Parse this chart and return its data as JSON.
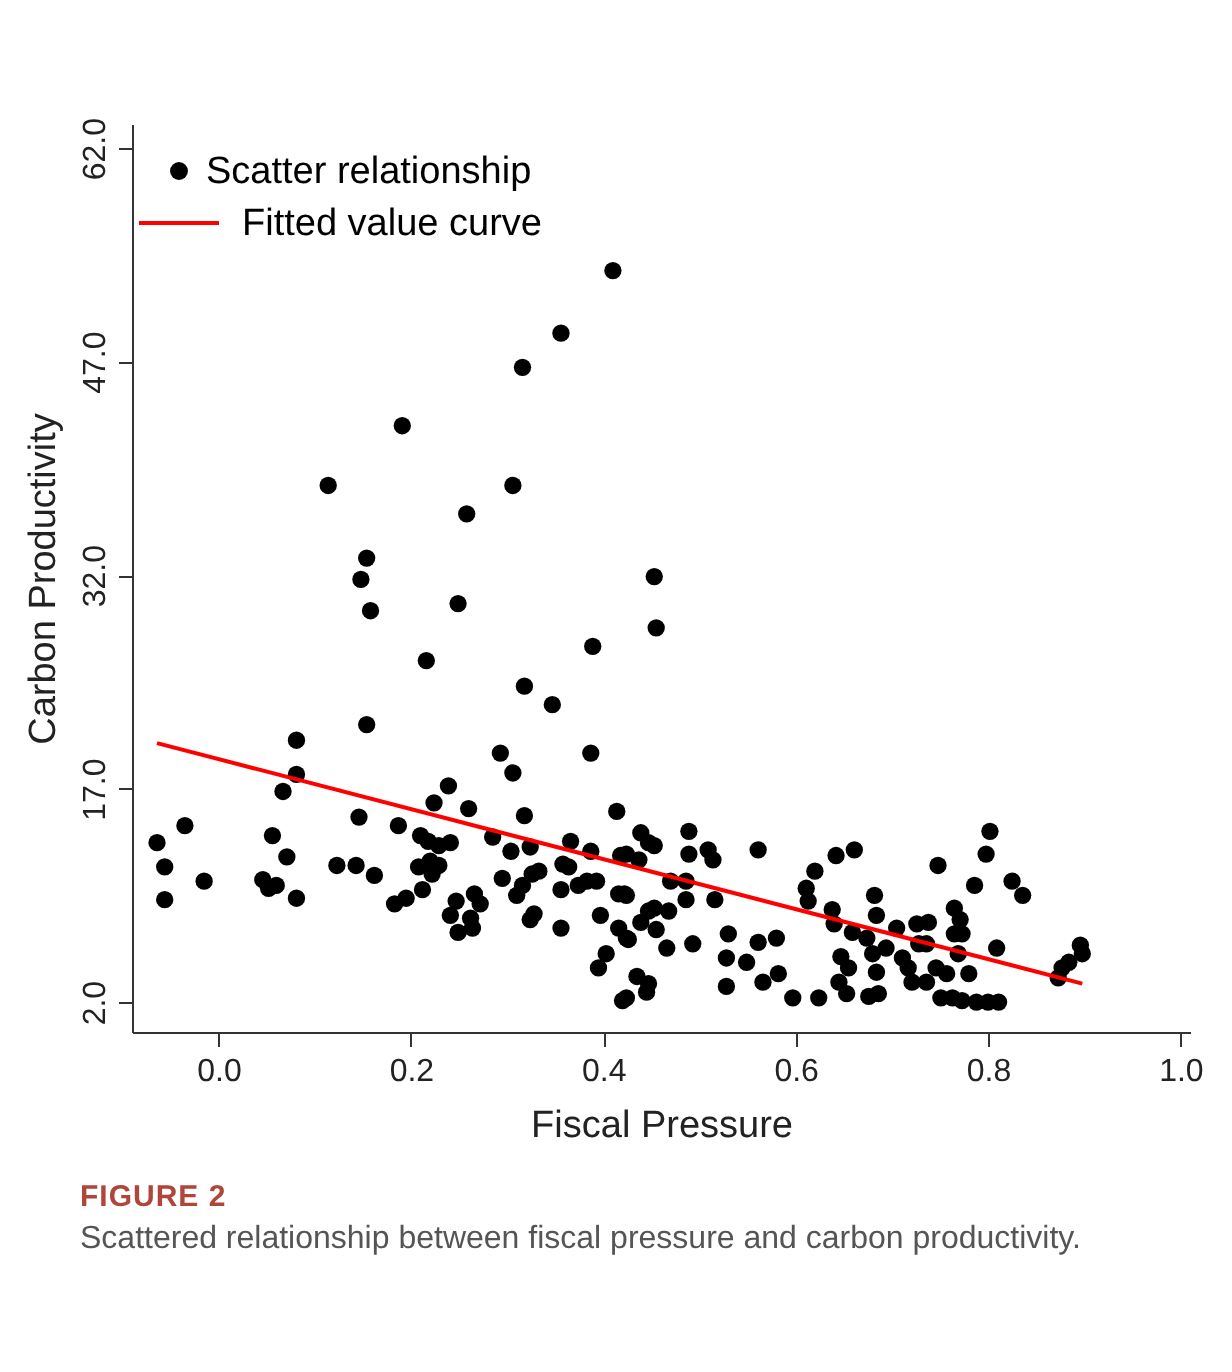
{
  "chart_data": {
    "type": "scatter",
    "xlabel": "Fiscal Pressure",
    "ylabel": "Carbon Productivity",
    "xlim": [
      -0.09,
      1.01
    ],
    "ylim": [
      -0.1,
      63.7
    ],
    "xticks": [
      {
        "value": 0,
        "label": "0.0"
      },
      {
        "value": 0.2,
        "label": "0.2"
      },
      {
        "value": 0.4,
        "label": "0.4"
      },
      {
        "value": 0.6,
        "label": "0.6"
      },
      {
        "value": 0.8,
        "label": "0.8"
      },
      {
        "value": 1,
        "label": "1.0"
      }
    ],
    "yticks": [
      {
        "value": 2,
        "label": "2.0"
      },
      {
        "value": 17,
        "label": "17.0"
      },
      {
        "value": 32,
        "label": "32.0"
      },
      {
        "value": 47,
        "label": "47.0"
      },
      {
        "value": 62,
        "label": "62.0"
      }
    ],
    "legend": "top left",
    "grid": false,
    "annotations": [
      "FIGURE 2",
      "Scattered relationship between fiscal pressure and carbon productivity."
    ],
    "series": [
      {
        "name": "Scatter relationship",
        "color": "#000000",
        "marker": "circle",
        "x": [
          0.41,
          0.356,
          0.316,
          0.191,
          0.114,
          0.306,
          0.258,
          0.154,
          0.148,
          0.158,
          0.249,
          0.453,
          0.455,
          0.389,
          0.216,
          0.318,
          0.347,
          0.154,
          0.081,
          0.293,
          0.387,
          0.081,
          0.306,
          0.067,
          0.239,
          0.224,
          0.26,
          -0.064,
          -0.035,
          -0.056,
          -0.056,
          -0.015,
          0.056,
          0.071,
          0.046,
          0.06,
          0.052,
          0.081,
          0.146,
          0.123,
          0.143,
          0.162,
          0.187,
          0.183,
          0.195,
          0.21,
          0.218,
          0.229,
          0.241,
          0.208,
          0.22,
          0.229,
          0.212,
          0.222,
          0.247,
          0.241,
          0.249,
          0.262,
          0.266,
          0.272,
          0.264,
          0.285,
          0.304,
          0.318,
          0.324,
          0.295,
          0.316,
          0.31,
          0.333,
          0.326,
          0.328,
          0.324,
          0.356,
          0.356,
          0.358,
          0.366,
          0.364,
          0.374,
          0.387,
          0.383,
          0.393,
          0.397,
          0.403,
          0.395,
          0.414,
          0.418,
          0.416,
          0.422,
          0.416,
          0.426,
          0.42,
          0.439,
          0.437,
          0.447,
          0.439,
          0.447,
          0.435,
          0.447,
          0.455,
          0.453,
          0.424,
          0.489,
          0.489,
          0.509,
          0.514,
          0.561,
          0.47,
          0.486,
          0.486,
          0.516,
          0.424,
          0.453,
          0.468,
          0.424,
          0.466,
          0.493,
          0.445,
          0.424,
          0.53,
          0.528,
          0.528,
          0.549,
          0.561,
          0.58,
          0.566,
          0.582,
          0.597,
          0.624,
          0.611,
          0.613,
          0.62,
          0.642,
          0.661,
          0.638,
          0.64,
          0.659,
          0.647,
          0.655,
          0.645,
          0.653,
          0.682,
          0.684,
          0.674,
          0.68,
          0.684,
          0.676,
          0.686,
          0.694,
          0.705,
          0.711,
          0.717,
          0.726,
          0.728,
          0.738,
          0.736,
          0.721,
          0.736,
          0.746,
          0.757,
          0.748,
          0.765,
          0.771,
          0.765,
          0.773,
          0.769,
          0.78,
          0.773,
          0.788,
          0.8,
          0.811,
          0.751,
          0.763,
          0.786,
          0.798,
          0.802,
          0.809,
          0.825,
          0.836,
          0.873,
          0.877,
          0.884,
          0.896,
          0.898
        ],
        "values": [
          53.4,
          49.0,
          46.6,
          42.5,
          38.3,
          38.3,
          36.3,
          33.2,
          31.7,
          29.5,
          30.0,
          31.9,
          28.3,
          27.0,
          26.0,
          24.2,
          22.9,
          21.5,
          20.4,
          19.5,
          19.5,
          18.0,
          18.1,
          16.8,
          17.2,
          16.0,
          15.6,
          13.2,
          14.4,
          11.5,
          9.2,
          10.5,
          13.7,
          12.2,
          10.6,
          10.2,
          10.0,
          9.3,
          15.0,
          11.6,
          11.6,
          10.9,
          14.4,
          8.9,
          9.3,
          13.7,
          13.3,
          13.0,
          13.2,
          11.5,
          11.9,
          11.6,
          9.9,
          11.0,
          9.1,
          8.1,
          6.9,
          7.9,
          9.6,
          8.9,
          7.2,
          13.6,
          12.6,
          15.1,
          12.9,
          10.7,
          10.2,
          9.5,
          11.2,
          11.0,
          8.2,
          7.8,
          7.2,
          9.9,
          11.7,
          13.3,
          11.5,
          10.2,
          12.6,
          10.5,
          10.5,
          8.1,
          5.4,
          4.4,
          15.4,
          12.3,
          9.6,
          9.6,
          7.2,
          6.4,
          2.1,
          13.9,
          12.0,
          13.2,
          7.6,
          8.4,
          3.8,
          3.3,
          7.1,
          13.0,
          12.4,
          14.0,
          12.4,
          12.7,
          12.0,
          12.7,
          10.5,
          10.5,
          9.2,
          9.2,
          9.5,
          8.6,
          8.4,
          6.5,
          5.8,
          6.1,
          2.7,
          2.3,
          6.8,
          5.1,
          3.1,
          4.8,
          6.2,
          6.5,
          3.4,
          4.0,
          2.3,
          2.3,
          10.0,
          9.1,
          11.2,
          12.3,
          12.7,
          8.5,
          7.5,
          6.9,
          5.2,
          4.4,
          3.4,
          2.6,
          9.5,
          8.1,
          6.5,
          5.4,
          4.1,
          2.4,
          2.6,
          5.8,
          7.2,
          5.1,
          4.4,
          7.5,
          6.1,
          7.6,
          6.1,
          3.4,
          3.4,
          4.4,
          4.0,
          11.6,
          8.6,
          7.8,
          6.8,
          6.8,
          5.4,
          4.0,
          2.1,
          2.0,
          2.0,
          2.0,
          2.3,
          2.3,
          10.2,
          12.4,
          14.0,
          5.8,
          10.5,
          9.5,
          3.7,
          4.4,
          4.8,
          6.0,
          5.4
        ]
      },
      {
        "name": "Fitted value curve",
        "type": "line",
        "color": "#ff0000",
        "line_style": "solid",
        "x": [
          -0.064,
          0.898
        ],
        "values": [
          20.2,
          3.3
        ]
      }
    ]
  }
}
